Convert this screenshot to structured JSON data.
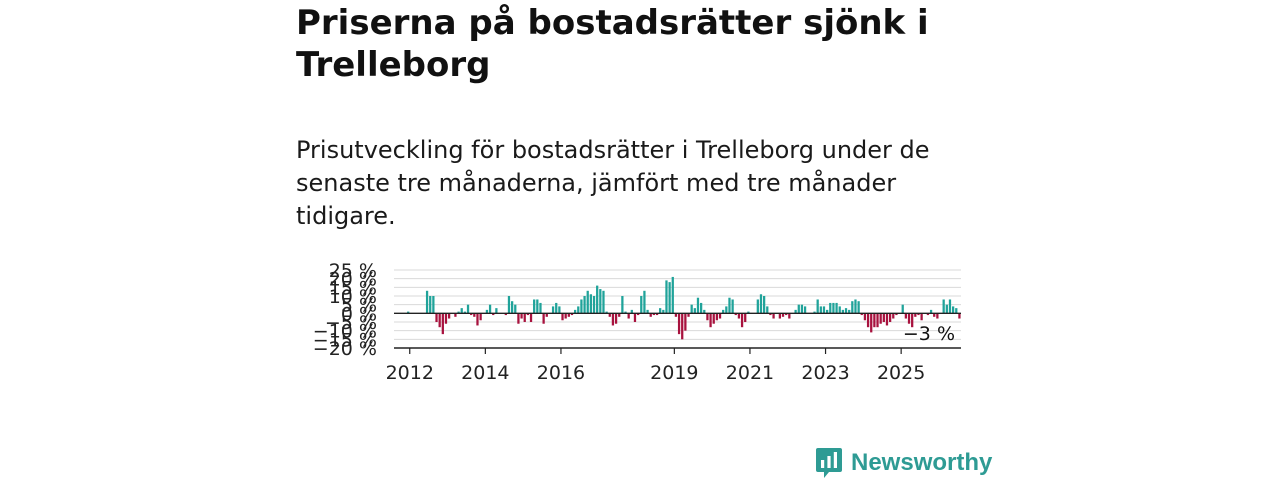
{
  "headline": "Priserna på bostadsrätter sjönk i Trelleborg",
  "subtitle": "Prisutveckling för bostadsrätter i Trelleborg under de senaste tre månaderna, jämfört med tre månader tidigare.",
  "brand": {
    "name": "Newsworthy",
    "icon": "newsworthy-logo-icon",
    "color": "#2e9b94"
  },
  "colors": {
    "positive": "#20a39a",
    "negative": "#a8123e",
    "grid": "#d9d9d9",
    "axis": "#222222"
  },
  "chart_data": {
    "type": "bar",
    "title": "",
    "xlabel": "",
    "ylabel": "",
    "ylim": [
      -20,
      25
    ],
    "yticks": [
      25,
      20,
      15,
      10,
      5,
      0,
      -5,
      -10,
      -15,
      -20
    ],
    "ytick_labels": [
      "25 %",
      "20 %",
      "15 %",
      "10 %",
      "5 %",
      "0 %",
      "−5 %",
      "−10 %",
      "−15 %",
      "−20 %"
    ],
    "xticks": [
      2012,
      2014,
      2016,
      2019,
      2021,
      2023,
      2025
    ],
    "x_start": "2011-08",
    "grid": true,
    "last_value_label": "−3 %",
    "series": [
      {
        "values": [
          0,
          0,
          0,
          0,
          1,
          0,
          0,
          0,
          0,
          0,
          13,
          10,
          10,
          -5,
          -8,
          -12,
          -6,
          -3,
          0,
          -2,
          1,
          3,
          1,
          5,
          -1,
          -2,
          -7,
          -4,
          0,
          2,
          5,
          -1,
          3,
          0,
          0,
          -1,
          10,
          7,
          5,
          -6,
          -3,
          -5,
          -1,
          -5,
          8,
          8,
          6,
          -6,
          -2,
          0,
          4,
          6,
          4,
          -4,
          -3,
          -2,
          -1,
          2,
          4,
          8,
          10,
          13,
          11,
          10,
          16,
          14,
          13,
          1,
          -2,
          -7,
          -6,
          -2,
          10,
          1,
          -3,
          2,
          -5,
          -1,
          10,
          13,
          2,
          -2,
          -1,
          -1,
          3,
          2,
          19,
          18,
          21,
          -2,
          -12,
          -15,
          -10,
          -2,
          5,
          3,
          9,
          6,
          2,
          -4,
          -8,
          -6,
          -4,
          -3,
          2,
          4,
          9,
          8,
          -1,
          -3,
          -8,
          -5,
          1,
          0,
          0,
          8,
          11,
          10,
          4,
          -1,
          -3,
          0,
          -3,
          -2,
          -1,
          -3,
          0,
          2,
          5,
          5,
          4,
          0,
          0,
          1,
          8,
          4,
          4,
          2,
          6,
          6,
          6,
          4,
          2,
          3,
          2,
          7,
          8,
          7,
          -1,
          -4,
          -8,
          -11,
          -8,
          -8,
          -6,
          -5,
          -7,
          -5,
          -3,
          -1,
          0,
          5,
          -3,
          -6,
          -8,
          -2,
          -1,
          -4,
          0,
          -1,
          2,
          -2,
          -3,
          0,
          8,
          5,
          8,
          4,
          3,
          -3
        ]
      }
    ]
  }
}
